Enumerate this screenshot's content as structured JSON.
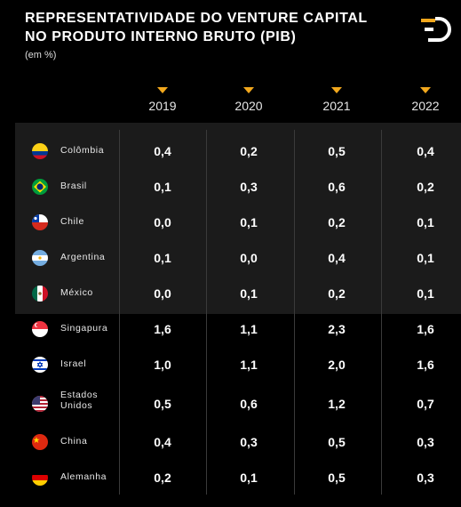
{
  "header": {
    "title_line1": "REPRESENTATIVIDADE DO VENTURE CAPITAL",
    "title_line2": "NO PRODUTO INTERNO BRUTO (PIB)",
    "subtitle": "(em %)"
  },
  "colors": {
    "accent": "#f2a81d",
    "highlight_band": "#1b1b1b",
    "background": "#000000"
  },
  "chart_data": {
    "type": "table",
    "title": "REPRESENTATIVIDADE DO VENTURE CAPITAL NO PRODUTO INTERNO BRUTO (PIB)",
    "unit": "(em %)",
    "columns": [
      "2019",
      "2020",
      "2021",
      "2022"
    ],
    "rows": [
      {
        "country": "Colômbia",
        "flag": "colombia-flag-icon",
        "values": [
          "0,4",
          "0,2",
          "0,5",
          "0,4"
        ]
      },
      {
        "country": "Brasil",
        "flag": "brazil-flag-icon",
        "values": [
          "0,1",
          "0,3",
          "0,6",
          "0,2"
        ]
      },
      {
        "country": "Chile",
        "flag": "chile-flag-icon",
        "values": [
          "0,0",
          "0,1",
          "0,2",
          "0,1"
        ]
      },
      {
        "country": "Argentina",
        "flag": "argentina-flag-icon",
        "values": [
          "0,1",
          "0,0",
          "0,4",
          "0,1"
        ]
      },
      {
        "country": "México",
        "flag": "mexico-flag-icon",
        "values": [
          "0,0",
          "0,1",
          "0,2",
          "0,1"
        ]
      },
      {
        "country": "Singapura",
        "flag": "singapore-flag-icon",
        "values": [
          "1,6",
          "1,1",
          "2,3",
          "1,6"
        ]
      },
      {
        "country": "Israel",
        "flag": "israel-flag-icon",
        "values": [
          "1,0",
          "1,1",
          "2,0",
          "1,6"
        ]
      },
      {
        "country": "Estados Unidos",
        "flag": "usa-flag-icon",
        "values": [
          "0,5",
          "0,6",
          "1,2",
          "0,7"
        ]
      },
      {
        "country": "China",
        "flag": "china-flag-icon",
        "values": [
          "0,4",
          "0,3",
          "0,5",
          "0,3"
        ]
      },
      {
        "country": "Alemanha",
        "flag": "germany-flag-icon",
        "values": [
          "0,2",
          "0,1",
          "0,5",
          "0,3"
        ]
      }
    ],
    "highlighted_rows": [
      "Colômbia",
      "Brasil",
      "Chile",
      "Argentina",
      "México"
    ]
  }
}
